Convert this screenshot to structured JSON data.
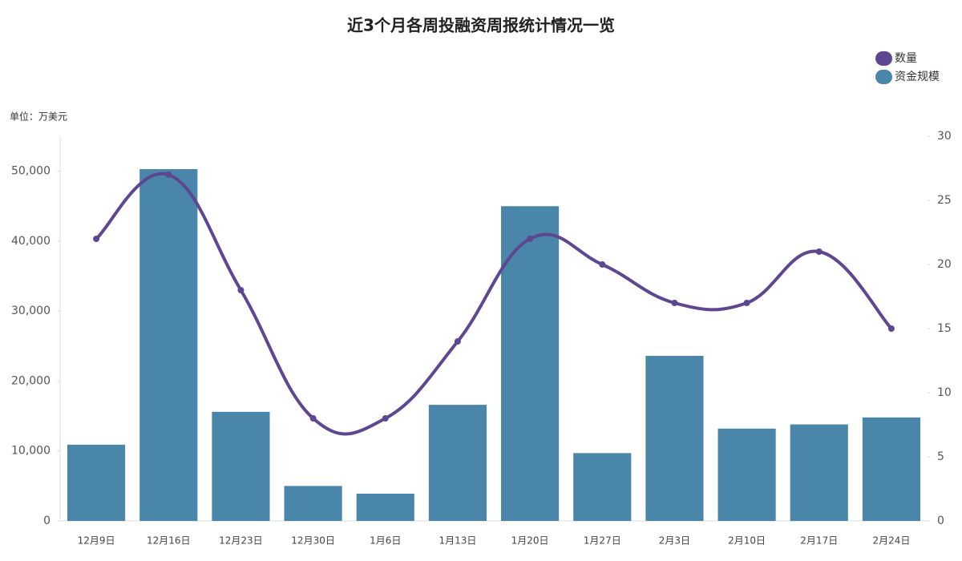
{
  "chart_data": {
    "type": "bar-line",
    "title": "近3个月各周投融资周报统计情况一览",
    "unit": "单位：万美元",
    "categories": [
      "12月9日",
      "12月16日",
      "12月23日",
      "12月30日",
      "1月6日",
      "1月13日",
      "1月20日",
      "1月27日",
      "2月3日",
      "2月10日",
      "2月17日",
      "2月24日"
    ],
    "series": [
      {
        "name": "数量",
        "type": "line",
        "axis": "y2",
        "color": "#5e4690",
        "values": [
          22,
          27,
          18,
          8,
          8,
          14,
          22,
          20,
          17,
          17,
          21,
          15
        ]
      },
      {
        "name": "资金规模",
        "type": "bar",
        "color": "#4a86aa",
        "values": [
          10900,
          50300,
          15600,
          5000,
          3900,
          16600,
          45000,
          9700,
          23600,
          13200,
          13800,
          14800
        ]
      }
    ],
    "ylim": [
      0,
      55000
    ],
    "yticks": [
      0,
      {
        "value": 10000,
        "label": "10,000"
      },
      {
        "value": 20000,
        "label": "20,000"
      },
      {
        "value": 30000,
        "label": "30,000"
      },
      {
        "value": 40000,
        "label": "40,000"
      },
      {
        "value": 50000,
        "label": "50,000"
      }
    ],
    "y2lim": [
      0,
      30
    ],
    "y2ticks": [
      0,
      5,
      10,
      15,
      20,
      25,
      30
    ],
    "legend": "top-right"
  }
}
